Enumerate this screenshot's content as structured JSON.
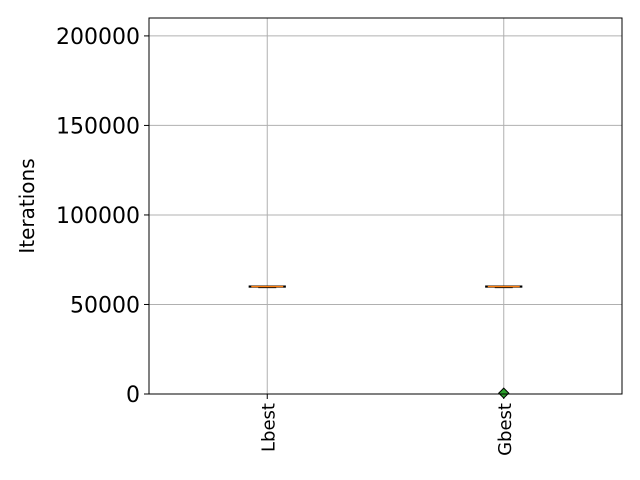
{
  "chart_data": {
    "type": "box",
    "title": "",
    "xlabel": "",
    "ylabel": "Iterations",
    "ylim": [
      0,
      210000
    ],
    "yticks": [
      0,
      50000,
      100000,
      150000,
      200000
    ],
    "ytick_labels": [
      "0",
      "50000",
      "100000",
      "150000",
      "200000"
    ],
    "grid": true,
    "categories": [
      "Lbest",
      "Gbest"
    ],
    "boxes": [
      {
        "category": "Lbest",
        "median": 60000,
        "q1": 60000,
        "q3": 60000,
        "whisker_low": 60000,
        "whisker_high": 60000,
        "fliers": []
      },
      {
        "category": "Gbest",
        "median": 60000,
        "q1": 60000,
        "q3": 60000,
        "whisker_low": 60000,
        "whisker_high": 60000,
        "fliers": [
          500
        ]
      }
    ],
    "colors": {
      "box": "#000000",
      "median": "#ff7f0e",
      "flier": "#2ca02c",
      "grid": "#b0b0b0"
    }
  }
}
